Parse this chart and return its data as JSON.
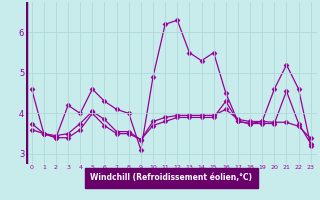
{
  "xlabel": "Windchill (Refroidissement éolien,°C)",
  "background_color": "#c8ecec",
  "axis_bar_color": "#6a006a",
  "line_color": "#990099",
  "grid_color": "#b0d8d8",
  "xlabel_bg": "#6a0080",
  "xlim": [
    -0.5,
    23.5
  ],
  "ylim": [
    2.75,
    6.75
  ],
  "yticks": [
    3,
    4,
    5,
    6
  ],
  "xticks": [
    0,
    1,
    2,
    3,
    4,
    5,
    6,
    7,
    8,
    9,
    10,
    11,
    12,
    13,
    14,
    15,
    16,
    17,
    18,
    19,
    20,
    21,
    22,
    23
  ],
  "series": [
    [
      4.6,
      3.5,
      3.4,
      4.2,
      4.0,
      4.6,
      4.3,
      4.1,
      4.0,
      3.1,
      4.9,
      6.2,
      6.3,
      5.5,
      5.3,
      5.5,
      4.5,
      3.8,
      3.75,
      3.8,
      4.6,
      5.2,
      4.6,
      3.2
    ],
    [
      3.6,
      3.5,
      3.4,
      3.4,
      3.6,
      4.0,
      3.7,
      3.5,
      3.5,
      3.35,
      3.7,
      3.8,
      3.9,
      3.9,
      3.9,
      3.9,
      4.3,
      3.8,
      3.75,
      3.75,
      3.75,
      4.55,
      3.75,
      3.25
    ],
    [
      3.75,
      3.5,
      3.45,
      3.5,
      3.75,
      4.05,
      3.85,
      3.55,
      3.55,
      3.35,
      3.8,
      3.9,
      3.95,
      3.95,
      3.95,
      3.95,
      4.1,
      3.85,
      3.8,
      3.8,
      3.78,
      3.78,
      3.68,
      3.38
    ]
  ]
}
